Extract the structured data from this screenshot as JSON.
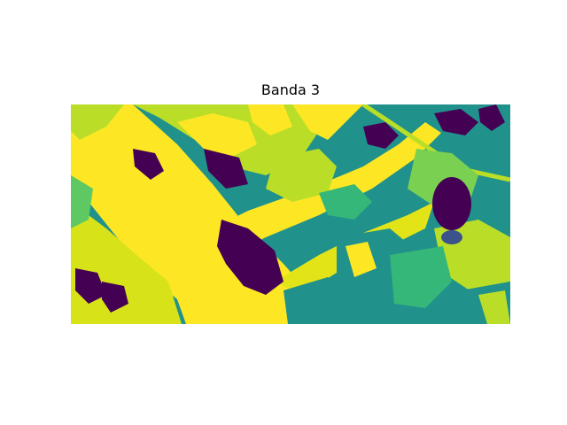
{
  "title": "Banda 3",
  "colormap": {
    "name": "viridis",
    "low": "#440154",
    "mid": "#21918c",
    "high_mid": "#bade28",
    "high": "#fde725"
  }
}
